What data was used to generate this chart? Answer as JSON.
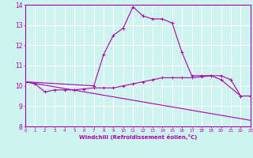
{
  "xlabel": "Windchill (Refroidissement éolien,°C)",
  "background_color": "#cdf4ef",
  "line_color": "#aa00aa",
  "grid_color": "#ffffff",
  "x_values": [
    0,
    1,
    2,
    3,
    4,
    5,
    6,
    7,
    8,
    9,
    10,
    11,
    12,
    13,
    14,
    15,
    16,
    17,
    18,
    19,
    20,
    21,
    22,
    23
  ],
  "line1_y": [
    10.2,
    10.1,
    9.7,
    9.8,
    9.8,
    9.8,
    9.85,
    9.9,
    9.9,
    9.9,
    10.0,
    10.1,
    10.2,
    10.3,
    10.4,
    10.4,
    10.4,
    10.4,
    10.45,
    10.5,
    10.5,
    10.3,
    9.5,
    9.5
  ],
  "line2_y": [
    10.2,
    null,
    null,
    null,
    null,
    null,
    null,
    10.0,
    11.55,
    12.5,
    12.85,
    13.9,
    13.45,
    13.3,
    13.3,
    13.1,
    11.65,
    10.5,
    10.5,
    10.5,
    10.3,
    null,
    9.5,
    null
  ],
  "line3_x": [
    0,
    23
  ],
  "line3_y": [
    10.2,
    8.3
  ],
  "ylim": [
    8,
    14
  ],
  "xlim": [
    0,
    23
  ],
  "yticks": [
    8,
    9,
    10,
    11,
    12,
    13,
    14
  ],
  "xticks": [
    0,
    1,
    2,
    3,
    4,
    5,
    6,
    7,
    8,
    9,
    10,
    11,
    12,
    13,
    14,
    15,
    16,
    17,
    18,
    19,
    20,
    21,
    22,
    23
  ]
}
